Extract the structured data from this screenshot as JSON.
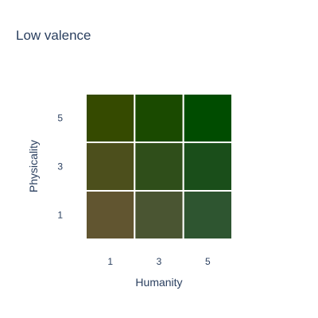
{
  "chart_data": {
    "type": "heatmap",
    "title": "Low valence",
    "xlabel": "Humanity",
    "ylabel": "Physicality",
    "x": [
      "1",
      "3",
      "5"
    ],
    "y": [
      "1",
      "3",
      "5"
    ],
    "cells": [
      {
        "x": "1",
        "y": "5",
        "color": "#354a00"
      },
      {
        "x": "3",
        "y": "5",
        "color": "#1a4a00"
      },
      {
        "x": "5",
        "y": "5",
        "color": "#004c00"
      },
      {
        "x": "1",
        "y": "3",
        "color": "#4c4f1c"
      },
      {
        "x": "3",
        "y": "3",
        "color": "#2f4e1a"
      },
      {
        "x": "5",
        "y": "3",
        "color": "#1a4e1a"
      },
      {
        "x": "1",
        "y": "1",
        "color": "#615530"
      },
      {
        "x": "3",
        "y": "1",
        "color": "#4a5532"
      },
      {
        "x": "5",
        "y": "1",
        "color": "#2e5530"
      }
    ],
    "grid": false,
    "legend": "none"
  }
}
